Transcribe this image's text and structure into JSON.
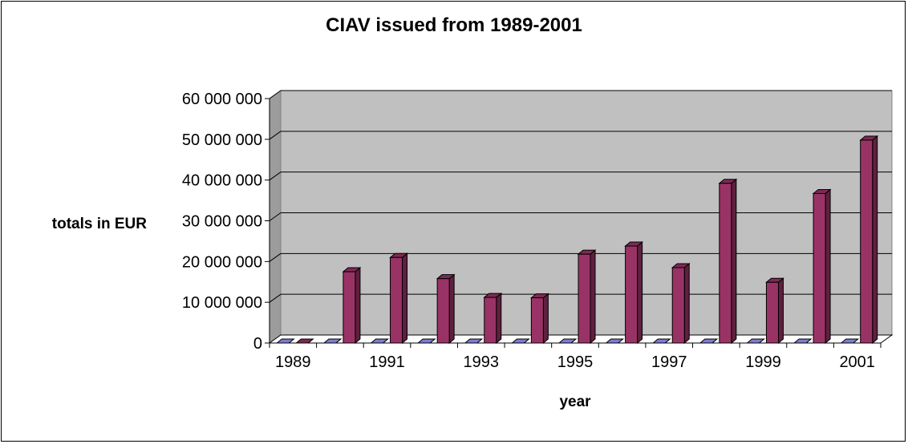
{
  "chart_data": {
    "type": "bar",
    "title": "CIAV issued from 1989-2001",
    "xlabel": "year",
    "ylabel": "totals in EUR",
    "categories": [
      "1989",
      "1990",
      "1991",
      "1992",
      "1993",
      "1994",
      "1995",
      "1996",
      "1997",
      "1998",
      "1999",
      "2000",
      "2001"
    ],
    "x_tick_labels": [
      "1989",
      "",
      "1991",
      "",
      "1993",
      "",
      "1995",
      "",
      "1997",
      "",
      "1999",
      "",
      "2001"
    ],
    "series": [
      {
        "values": [
          0,
          0,
          0,
          0,
          0,
          0,
          0,
          0,
          0,
          0,
          0,
          0,
          0
        ],
        "color": "#9999ff"
      },
      {
        "values": [
          0,
          17500000,
          21000000,
          15800000,
          11200000,
          11100000,
          21800000,
          23800000,
          18500000,
          39200000,
          14900000,
          36700000,
          49800000
        ],
        "color": "#993366"
      }
    ],
    "y_ticks": [
      "0",
      "10 000 000",
      "20 000 000",
      "30 000 000",
      "40 000 000",
      "50 000 000",
      "60 000 000"
    ],
    "ylim": [
      0,
      60000000
    ],
    "grid": true,
    "plot_background": "#c0c0c0",
    "floor_color": "#ffffff",
    "legend": "none"
  }
}
